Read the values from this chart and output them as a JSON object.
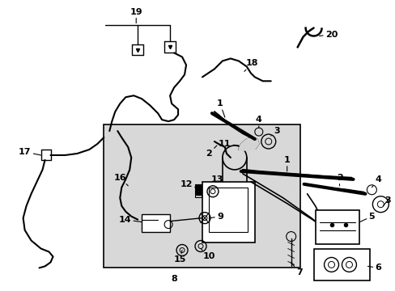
{
  "bg_color": "#ffffff",
  "line_color": "#000000",
  "figsize": [
    4.89,
    3.6
  ],
  "dpi": 100,
  "box_fill": "#e0e0e0",
  "label_fs": 8.0
}
